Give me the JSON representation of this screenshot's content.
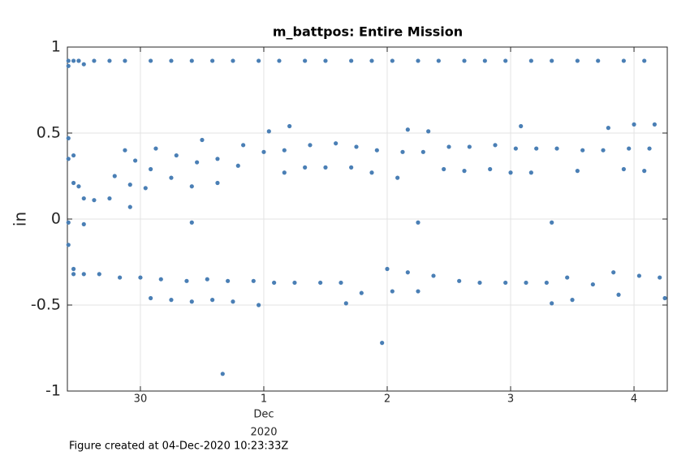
{
  "chart_data": {
    "type": "scatter",
    "title": "m_battpos: Entire Mission",
    "ylabel": "in",
    "x_month_label": "Dec",
    "x_year_label": "2020",
    "footer": "Figure created at 04-Dec-2020 10:23:33Z",
    "color": "#4a7fb5",
    "grid": true,
    "xlim": [
      "2020-11-29T09:48",
      "2020-12-04T06:28"
    ],
    "xticks": [
      {
        "value": "2020-11-30T00:00",
        "label": "30"
      },
      {
        "value": "2020-12-01T00:00",
        "label": "1"
      },
      {
        "value": "2020-12-02T00:00",
        "label": "2"
      },
      {
        "value": "2020-12-03T00:00",
        "label": "3"
      },
      {
        "value": "2020-12-04T00:00",
        "label": "4"
      }
    ],
    "ylim": [
      -1,
      1
    ],
    "yticks": [
      1,
      0.5,
      0,
      -0.5,
      -1
    ],
    "x": [
      "2020-11-29T10:00",
      "2020-11-29T10:00",
      "2020-11-29T11:00",
      "2020-11-29T12:00",
      "2020-11-29T12:00",
      "2020-11-29T13:00",
      "2020-11-29T15:00",
      "2020-11-29T18:00",
      "2020-11-29T21:00",
      "2020-11-30T02:00",
      "2020-11-30T06:00",
      "2020-11-30T10:00",
      "2020-11-30T14:00",
      "2020-11-30T18:00",
      "2020-11-30T23:00",
      "2020-12-01T03:00",
      "2020-12-01T08:00",
      "2020-12-01T12:00",
      "2020-12-01T17:00",
      "2020-12-01T21:00",
      "2020-12-02T01:00",
      "2020-12-02T06:00",
      "2020-12-02T10:00",
      "2020-12-02T15:00",
      "2020-12-02T19:00",
      "2020-12-02T23:00",
      "2020-12-03T04:00",
      "2020-12-03T08:00",
      "2020-12-03T13:00",
      "2020-12-03T17:00",
      "2020-12-03T22:00",
      "2020-12-04T02:00",
      "2020-11-29T10:00",
      "2020-11-29T10:00",
      "2020-11-29T11:00",
      "2020-11-29T11:00",
      "2020-11-29T12:00",
      "2020-11-29T13:00",
      "2020-11-29T13:00",
      "2020-11-29T15:00",
      "2020-11-29T18:00",
      "2020-11-29T19:00",
      "2020-11-29T21:00",
      "2020-11-29T22:00",
      "2020-11-29T22:00",
      "2020-11-29T23:00",
      "2020-11-30T01:00",
      "2020-11-30T02:00",
      "2020-11-30T03:00",
      "2020-11-30T06:00",
      "2020-11-30T07:00",
      "2020-11-30T10:00",
      "2020-11-30T10:00",
      "2020-11-30T11:00",
      "2020-11-30T12:00",
      "2020-11-30T15:00",
      "2020-11-30T15:00",
      "2020-11-30T19:00",
      "2020-11-30T20:00",
      "2020-12-01T00:00",
      "2020-12-01T01:00",
      "2020-12-01T04:00",
      "2020-12-01T04:00",
      "2020-12-01T05:00",
      "2020-12-01T08:00",
      "2020-12-01T09:00",
      "2020-12-01T12:00",
      "2020-12-01T14:00",
      "2020-12-01T17:00",
      "2020-12-01T18:00",
      "2020-12-01T21:00",
      "2020-12-01T22:00",
      "2020-12-02T02:00",
      "2020-12-02T03:00",
      "2020-12-02T04:00",
      "2020-12-02T06:00",
      "2020-12-02T07:00",
      "2020-12-02T08:00",
      "2020-12-02T11:00",
      "2020-12-02T12:00",
      "2020-12-02T15:00",
      "2020-12-02T16:00",
      "2020-12-02T20:00",
      "2020-12-02T21:00",
      "2020-12-03T00:00",
      "2020-12-03T01:00",
      "2020-12-03T02:00",
      "2020-12-03T04:00",
      "2020-12-03T05:00",
      "2020-12-03T08:00",
      "2020-12-03T09:00",
      "2020-12-03T13:00",
      "2020-12-03T14:00",
      "2020-12-03T18:00",
      "2020-12-03T19:00",
      "2020-12-03T22:00",
      "2020-12-03T23:00",
      "2020-12-04T00:00",
      "2020-12-04T02:00",
      "2020-12-04T03:00",
      "2020-12-04T04:00",
      "2020-11-29T10:00",
      "2020-11-29T10:00",
      "2020-11-29T11:00",
      "2020-11-29T11:00",
      "2020-11-29T13:00",
      "2020-11-29T16:00",
      "2020-11-29T20:00",
      "2020-11-30T00:00",
      "2020-11-30T02:00",
      "2020-11-30T04:00",
      "2020-11-30T06:00",
      "2020-11-30T09:00",
      "2020-11-30T10:00",
      "2020-11-30T13:00",
      "2020-11-30T14:00",
      "2020-11-30T16:00",
      "2020-11-30T17:00",
      "2020-11-30T18:00",
      "2020-11-30T22:00",
      "2020-11-30T23:00",
      "2020-12-01T02:00",
      "2020-12-01T06:00",
      "2020-12-01T11:00",
      "2020-12-01T15:00",
      "2020-12-01T16:00",
      "2020-12-01T19:00",
      "2020-12-01T23:00",
      "2020-12-02T00:00",
      "2020-12-02T01:00",
      "2020-12-02T04:00",
      "2020-12-02T06:00",
      "2020-12-02T09:00",
      "2020-12-02T14:00",
      "2020-12-02T18:00",
      "2020-12-02T23:00",
      "2020-12-03T03:00",
      "2020-12-03T07:00",
      "2020-12-03T08:00",
      "2020-12-03T11:00",
      "2020-12-03T12:00",
      "2020-12-03T16:00",
      "2020-12-03T20:00",
      "2020-12-03T21:00",
      "2020-12-04T01:00",
      "2020-12-04T05:00",
      "2020-12-04T06:00"
    ],
    "values": [
      0.89,
      0.92,
      0.92,
      0.92,
      0.92,
      0.9,
      0.92,
      0.92,
      0.92,
      0.92,
      0.92,
      0.92,
      0.92,
      0.92,
      0.92,
      0.92,
      0.92,
      0.92,
      0.92,
      0.92,
      0.92,
      0.92,
      0.92,
      0.92,
      0.92,
      0.92,
      0.92,
      0.92,
      0.92,
      0.92,
      0.92,
      0.92,
      0.47,
      0.35,
      0.21,
      0.37,
      0.19,
      -0.03,
      0.12,
      0.11,
      0.12,
      0.25,
      0.4,
      0.07,
      0.2,
      0.34,
      0.18,
      0.29,
      0.41,
      0.24,
      0.37,
      -0.02,
      0.19,
      0.33,
      0.46,
      0.21,
      0.35,
      0.31,
      0.43,
      0.39,
      0.51,
      0.27,
      0.4,
      0.54,
      0.3,
      0.43,
      0.3,
      0.44,
      0.3,
      0.42,
      0.27,
      0.4,
      0.24,
      0.39,
      0.52,
      -0.02,
      0.39,
      0.51,
      0.29,
      0.42,
      0.28,
      0.42,
      0.29,
      0.43,
      0.27,
      0.41,
      0.54,
      0.27,
      0.41,
      -0.02,
      0.41,
      0.28,
      0.4,
      0.4,
      0.53,
      0.29,
      0.41,
      0.55,
      0.28,
      0.41,
      0.55,
      -0.02,
      -0.15,
      -0.29,
      -0.32,
      -0.32,
      -0.32,
      -0.34,
      -0.34,
      -0.46,
      -0.35,
      -0.47,
      -0.36,
      -0.48,
      -0.35,
      -0.47,
      -0.9,
      -0.36,
      -0.48,
      -0.36,
      -0.5,
      -0.37,
      -0.37,
      -0.37,
      -0.37,
      -0.49,
      -0.43,
      -0.72,
      -0.29,
      -0.42,
      -0.31,
      -0.42,
      -0.33,
      -0.36,
      -0.37,
      -0.37,
      -0.37,
      -0.37,
      -0.49,
      -0.34,
      -0.47,
      -0.38,
      -0.31,
      -0.44,
      -0.33,
      -0.34,
      -0.46
    ]
  }
}
